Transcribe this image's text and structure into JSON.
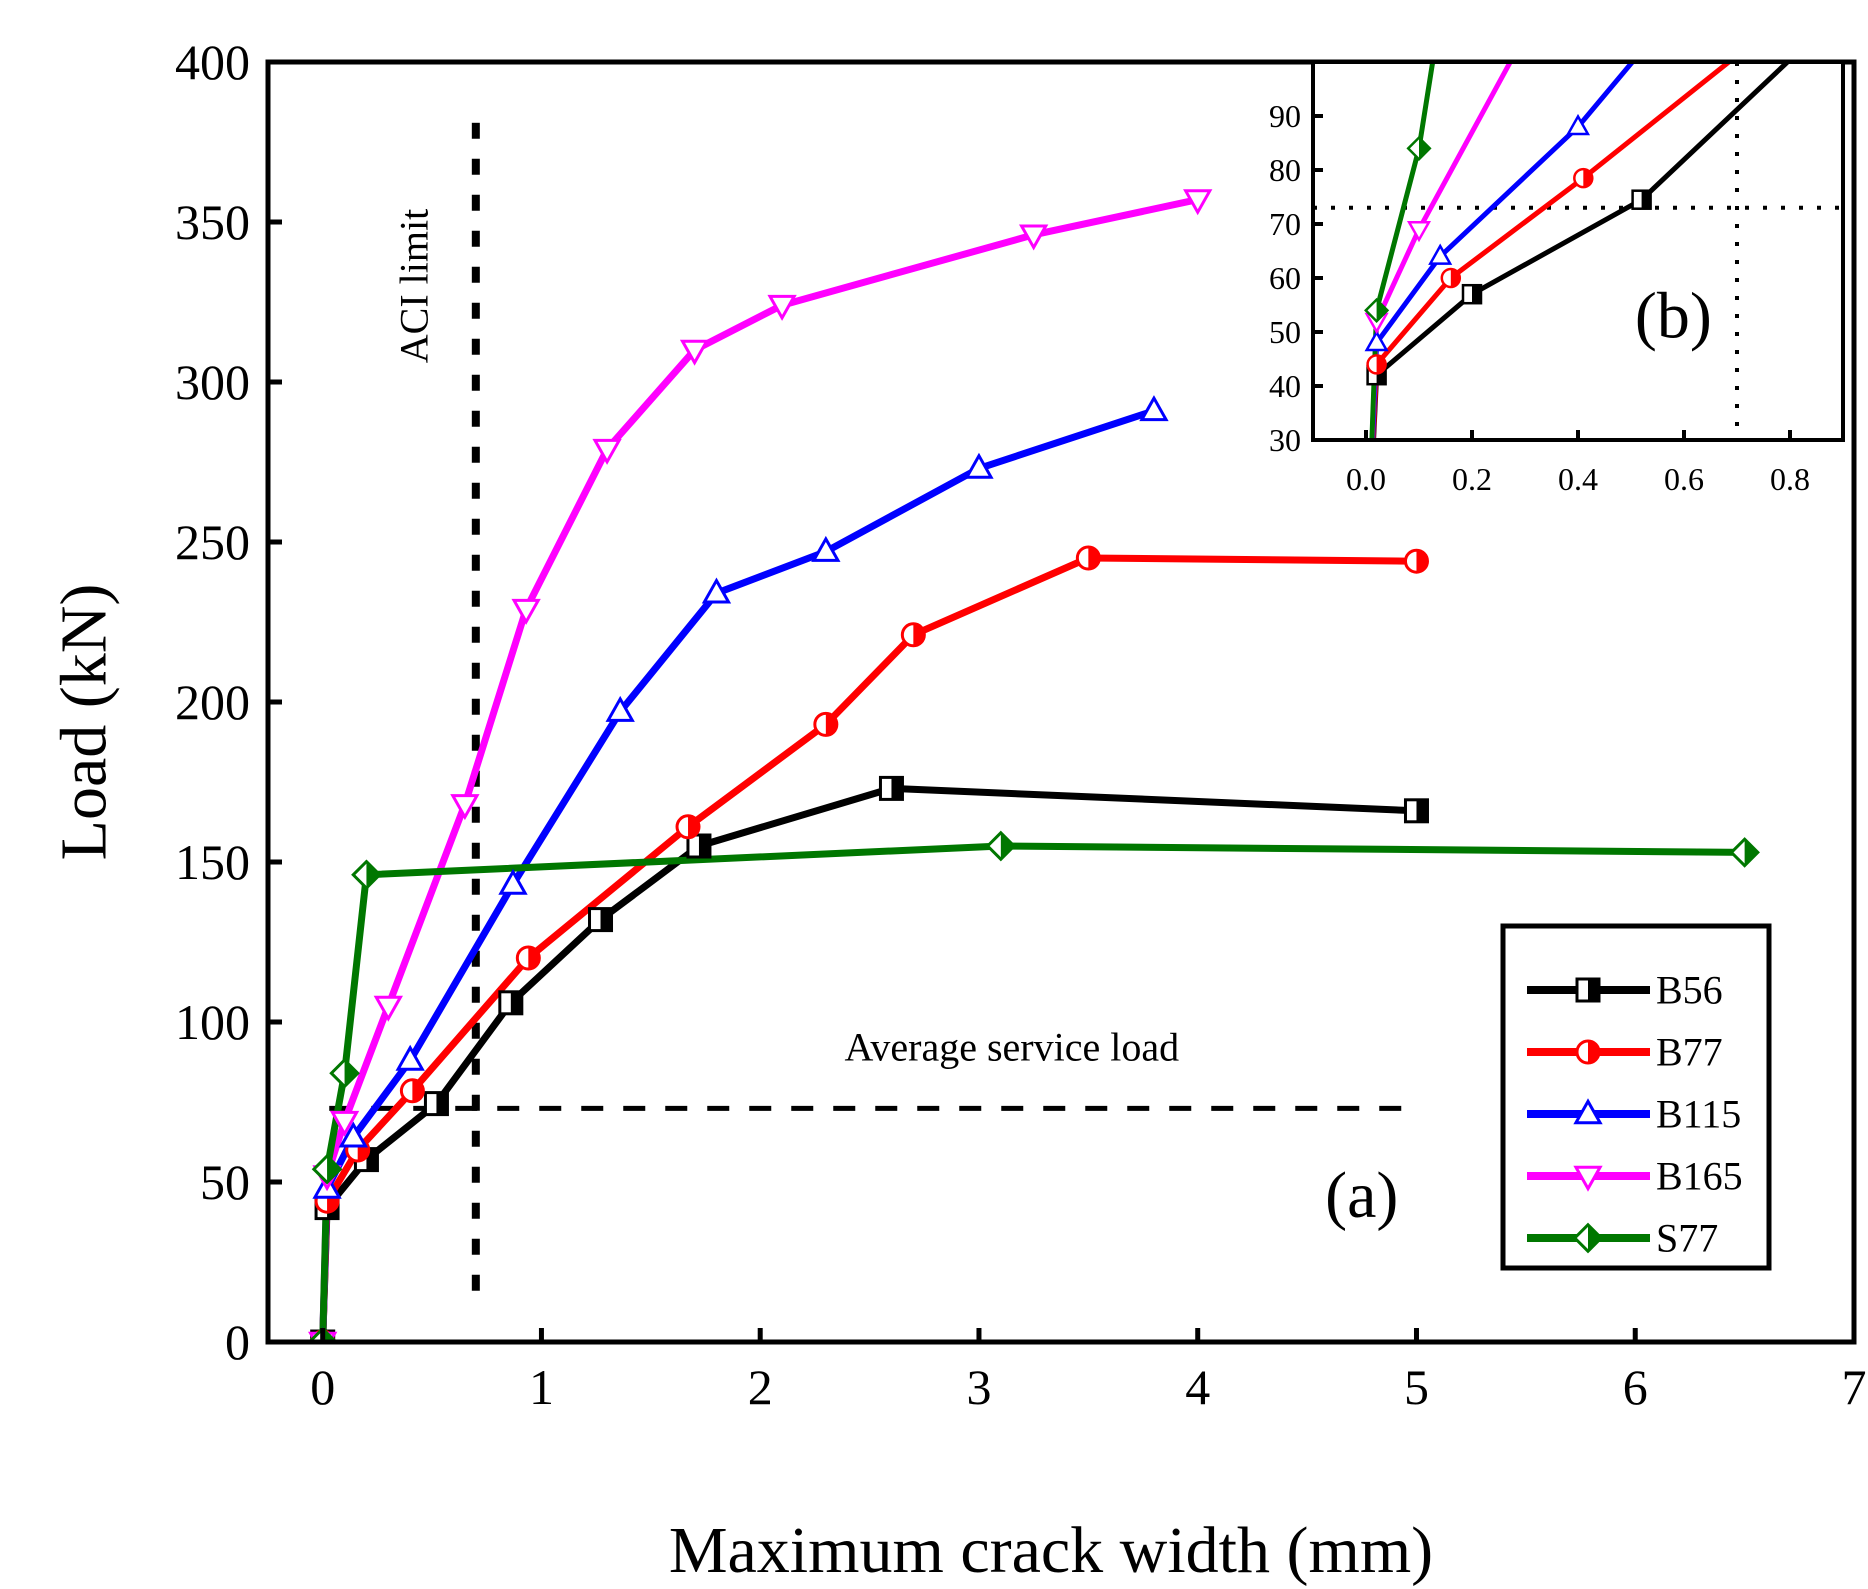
{
  "chart_data": [
    {
      "panel": "(a)",
      "type": "line",
      "xlabel": "Maximum crack width (mm)",
      "ylabel": "Load (kN)",
      "xlim": [
        -0.25,
        7
      ],
      "ylim": [
        0,
        400
      ],
      "xticks": [
        "0",
        "1",
        "2",
        "3",
        "4",
        "5",
        "6",
        "7"
      ],
      "yticks": [
        "0",
        "50",
        "100",
        "150",
        "200",
        "250",
        "300",
        "350",
        "400"
      ],
      "grid": false,
      "legend_position": "bottom-right",
      "annotations": {
        "aci_label": "ACI limit",
        "aci_x": 0.7,
        "service_label": "Average service load",
        "service_y": 73
      },
      "series": [
        {
          "name": "B56",
          "color": "#000000",
          "marker": "square-half",
          "x": [
            0.0,
            0.02,
            0.2,
            0.52,
            0.86,
            1.27,
            1.72,
            2.6,
            5.0
          ],
          "y": [
            0,
            42,
            57,
            74.5,
            106,
            132,
            155,
            173,
            166
          ]
        },
        {
          "name": "B77",
          "color": "#ff0000",
          "marker": "circle-half",
          "x": [
            0.0,
            0.02,
            0.16,
            0.41,
            0.94,
            1.67,
            2.3,
            2.7,
            3.5,
            5.0
          ],
          "y": [
            0,
            44,
            60,
            78.5,
            120,
            161,
            193,
            221,
            245,
            244
          ]
        },
        {
          "name": "B115",
          "color": "#0000ff",
          "marker": "triangle-up",
          "x": [
            0.0,
            0.02,
            0.14,
            0.4,
            0.87,
            1.36,
            1.8,
            2.3,
            3.0,
            3.8
          ],
          "y": [
            0,
            48,
            64,
            88,
            143,
            197,
            234,
            247,
            273,
            291
          ]
        },
        {
          "name": "B165",
          "color": "#ff00ff",
          "marker": "triangle-down",
          "x": [
            0.0,
            0.02,
            0.1,
            0.3,
            0.65,
            0.93,
            1.3,
            1.7,
            2.1,
            3.25,
            4.0
          ],
          "y": [
            0,
            52,
            69,
            105,
            168,
            229,
            279,
            310,
            324,
            346,
            357
          ]
        },
        {
          "name": "S77",
          "color": "#007700",
          "marker": "diamond",
          "x": [
            0.0,
            0.02,
            0.1,
            0.2,
            3.1,
            6.5
          ],
          "y": [
            0,
            54,
            84,
            146,
            155,
            153
          ]
        }
      ]
    },
    {
      "panel": "(b)",
      "type": "line",
      "xlim": [
        -0.1,
        0.9
      ],
      "ylim": [
        30,
        100
      ],
      "xticks": [
        "0.0",
        "0.2",
        "0.4",
        "0.6",
        "0.8"
      ],
      "yticks": [
        "30",
        "40",
        "50",
        "60",
        "70",
        "80",
        "90"
      ],
      "grid": false,
      "annotations": {
        "ref_x": 0.7,
        "ref_y": 73
      },
      "series": [
        {
          "name": "B56",
          "color": "#000000",
          "marker": "square-half",
          "x": [
            0.0,
            0.02,
            0.2,
            0.52,
            0.86
          ],
          "y": [
            0,
            42,
            57,
            74.5,
            106
          ]
        },
        {
          "name": "B77",
          "color": "#ff0000",
          "marker": "circle-half",
          "x": [
            0.0,
            0.02,
            0.16,
            0.41,
            0.94
          ],
          "y": [
            0,
            44,
            60,
            78.5,
            120
          ]
        },
        {
          "name": "B115",
          "color": "#0000ff",
          "marker": "triangle-up",
          "x": [
            0.0,
            0.02,
            0.14,
            0.4,
            0.87
          ],
          "y": [
            0,
            48,
            64,
            88,
            143
          ]
        },
        {
          "name": "B165",
          "color": "#ff00ff",
          "marker": "triangle-down",
          "x": [
            0.0,
            0.02,
            0.1,
            0.3
          ],
          "y": [
            0,
            52,
            69,
            105
          ]
        },
        {
          "name": "S77",
          "color": "#007700",
          "marker": "diamond",
          "x": [
            0.0,
            0.02,
            0.1,
            0.2
          ],
          "y": [
            0,
            54,
            84,
            146
          ]
        }
      ]
    }
  ]
}
